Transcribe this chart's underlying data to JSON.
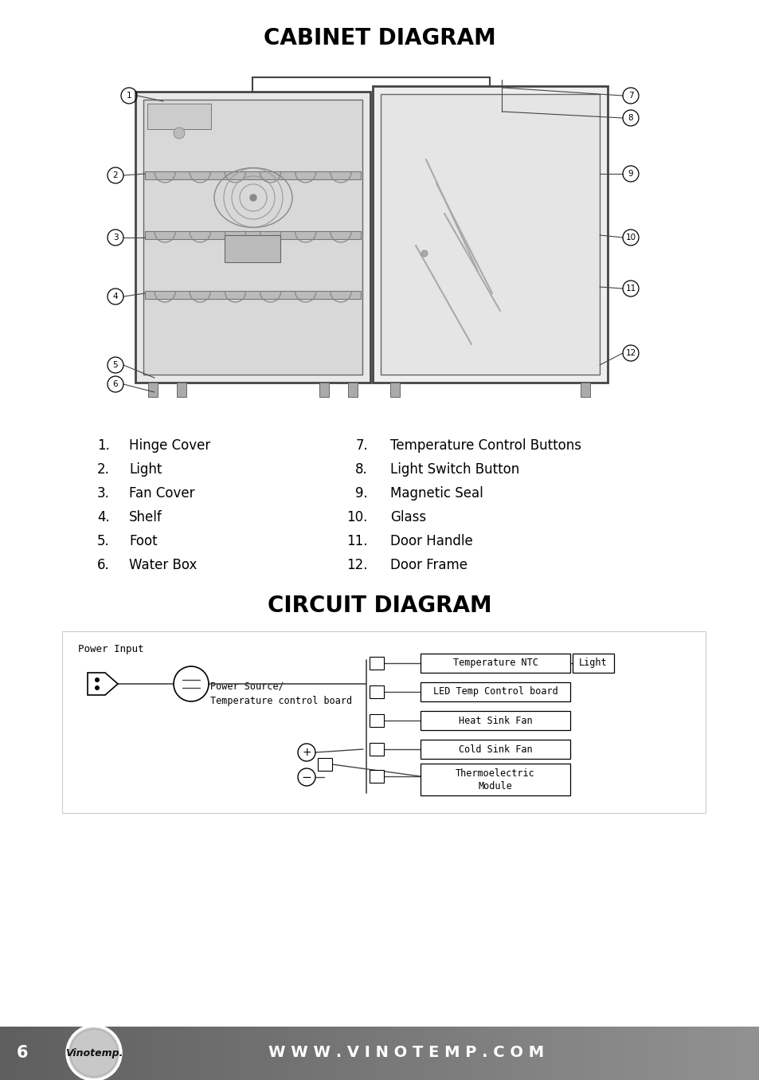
{
  "title1": "CABINET DIAGRAM",
  "title2": "CIRCUIT DIAGRAM",
  "parts": [
    [
      "1.",
      "Hinge Cover",
      "7.",
      "Temperature Control Buttons"
    ],
    [
      "2.",
      "Light",
      "8.",
      "Light Switch Button"
    ],
    [
      "3.",
      "Fan Cover",
      "9.",
      "Magnetic Seal"
    ],
    [
      "4.",
      "Shelf",
      "10.",
      "Glass"
    ],
    [
      "5.",
      "Foot",
      "11.",
      "Door Handle"
    ],
    [
      "6.",
      "Water Box",
      "12.",
      "Door Frame"
    ]
  ],
  "circuit_components": [
    "Temperature NTC",
    "LED Temp Control board",
    "Heat Sink Fan",
    "Cold Sink Fan"
  ],
  "footer_text": "W W W . V I N O T E M P . C O M",
  "page_num": "6",
  "bg": "#ffffff"
}
